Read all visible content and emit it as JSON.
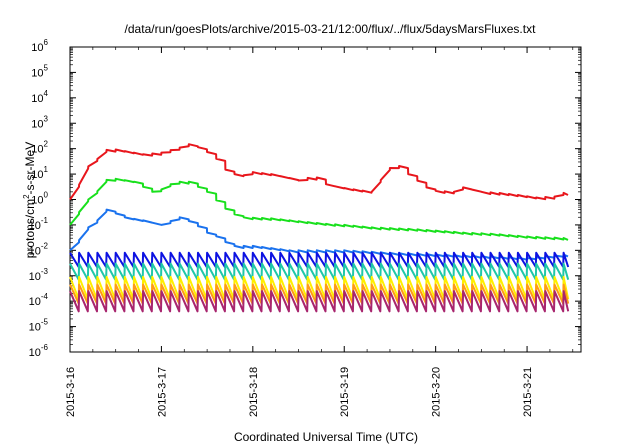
{
  "chart_data": {
    "type": "line",
    "title": "/data/run/goesPlots/archive/2015-03-21/12:00/flux/../flux/5daysMarsFluxes.txt",
    "xlabel": "Coordinated Universal Time (UTC)",
    "ylabel": {
      "pre": "protons/cm",
      "sup": "2",
      "post": "-s-sr-MeV"
    },
    "y_scale": "log",
    "ylim": [
      1e-06,
      1000000.0
    ],
    "xlim_days": [
      "2015-03-16",
      "2015-03-21 ~12:00"
    ],
    "x_ticks": [
      "2015-3-16",
      "2015-3-17",
      "2015-3-18",
      "2015-3-19",
      "2015-3-20",
      "2015-3-21"
    ],
    "y_ticks": [
      {
        "base": "10",
        "exp": "-6"
      },
      {
        "base": "10",
        "exp": "-5"
      },
      {
        "base": "10",
        "exp": "-4"
      },
      {
        "base": "10",
        "exp": "-3"
      },
      {
        "base": "10",
        "exp": "-2"
      },
      {
        "base": "10",
        "exp": "-1"
      },
      {
        "base": "10",
        "exp": "0"
      },
      {
        "base": "10",
        "exp": "1"
      },
      {
        "base": "10",
        "exp": "2"
      },
      {
        "base": "10",
        "exp": "3"
      },
      {
        "base": "10",
        "exp": "4"
      },
      {
        "base": "10",
        "exp": "5"
      },
      {
        "base": "10",
        "exp": "6"
      }
    ],
    "grid": false,
    "legend": "none",
    "series": [
      {
        "color": "#e8161c",
        "kind": "trend",
        "points": [
          [
            0,
            1
          ],
          [
            0.12,
            5
          ],
          [
            0.2,
            20
          ],
          [
            0.28,
            30
          ],
          [
            0.35,
            80
          ],
          [
            0.45,
            100
          ],
          [
            0.6,
            80
          ],
          [
            0.8,
            60
          ],
          [
            1.0,
            70
          ],
          [
            1.2,
            110
          ],
          [
            1.3,
            150
          ],
          [
            1.45,
            100
          ],
          [
            1.6,
            40
          ],
          [
            1.7,
            15
          ],
          [
            1.8,
            10
          ],
          [
            1.9,
            9
          ],
          [
            2.0,
            12
          ],
          [
            2.2,
            10
          ],
          [
            2.4,
            7
          ],
          [
            2.55,
            5
          ],
          [
            2.65,
            10
          ],
          [
            2.8,
            4
          ],
          [
            2.95,
            3
          ],
          [
            3.1,
            2.5
          ],
          [
            3.3,
            2.0
          ],
          [
            3.45,
            10
          ],
          [
            3.55,
            30
          ],
          [
            3.7,
            10
          ],
          [
            3.9,
            3
          ],
          [
            4.0,
            2.2
          ],
          [
            4.2,
            2.0
          ],
          [
            4.3,
            3
          ],
          [
            4.5,
            2.0
          ],
          [
            4.7,
            1.8
          ],
          [
            4.9,
            1.5
          ],
          [
            5.1,
            1.2
          ],
          [
            5.3,
            1.3
          ],
          [
            5.35,
            2.2
          ],
          [
            5.45,
            1.5
          ]
        ],
        "jump_fall": 0.5,
        "jump_every": 0.1
      },
      {
        "color": "#18e01c",
        "kind": "trend",
        "points": [
          [
            0,
            0.1
          ],
          [
            0.12,
            0.4
          ],
          [
            0.2,
            1.0
          ],
          [
            0.28,
            1.5
          ],
          [
            0.35,
            5
          ],
          [
            0.45,
            7
          ],
          [
            0.7,
            5
          ],
          [
            0.9,
            2
          ],
          [
            1.0,
            2.5
          ],
          [
            1.15,
            5
          ],
          [
            1.3,
            5
          ],
          [
            1.5,
            2
          ],
          [
            1.62,
            0.8
          ],
          [
            1.75,
            0.3
          ],
          [
            1.9,
            0.2
          ],
          [
            2.2,
            0.18
          ],
          [
            2.5,
            0.14
          ],
          [
            2.8,
            0.11
          ],
          [
            3.0,
            0.1
          ],
          [
            3.3,
            0.08
          ],
          [
            3.7,
            0.07
          ],
          [
            4.0,
            0.06
          ],
          [
            4.3,
            0.05
          ],
          [
            4.6,
            0.045
          ],
          [
            5.0,
            0.035
          ],
          [
            5.45,
            0.03
          ]
        ],
        "jump_fall": 0.45,
        "jump_every": 0.1
      },
      {
        "color": "#1a72ee",
        "kind": "trend",
        "points": [
          [
            0,
            0.01
          ],
          [
            0.12,
            0.03
          ],
          [
            0.2,
            0.08
          ],
          [
            0.3,
            0.15
          ],
          [
            0.4,
            0.4
          ],
          [
            0.6,
            0.2
          ],
          [
            0.8,
            0.15
          ],
          [
            1.0,
            0.1
          ],
          [
            1.2,
            0.2
          ],
          [
            1.35,
            0.12
          ],
          [
            1.5,
            0.05
          ],
          [
            1.65,
            0.03
          ],
          [
            1.75,
            0.015
          ],
          [
            2.0,
            0.015
          ],
          [
            2.4,
            0.01
          ],
          [
            3.0,
            0.01
          ],
          [
            3.5,
            0.008
          ],
          [
            4.0,
            0.007
          ],
          [
            4.5,
            0.006
          ],
          [
            5.0,
            0.005
          ],
          [
            5.45,
            0.007
          ]
        ],
        "jump_fall": 0.5,
        "jump_every": 0.1
      },
      {
        "color": "#0d12e2",
        "kind": "saw",
        "base": 0.005,
        "high": 0.008,
        "low": 0.0022,
        "period": 0.1
      },
      {
        "color": "#1fc7a8",
        "kind": "saw",
        "base": 0.0022,
        "high": 0.003,
        "low": 0.0007,
        "period": 0.1
      },
      {
        "color": "#ffee00",
        "kind": "saw",
        "base": 0.00065,
        "high": 0.0009,
        "low": 0.00012,
        "period": 0.1
      },
      {
        "color": "#ff9a18",
        "kind": "saw",
        "base": 0.00035,
        "high": 0.00045,
        "low": 8e-05,
        "period": 0.1
      },
      {
        "color": "#a8256e",
        "kind": "saw",
        "base": 0.0002,
        "high": 0.00025,
        "low": 4e-05,
        "period": 0.1
      }
    ]
  }
}
